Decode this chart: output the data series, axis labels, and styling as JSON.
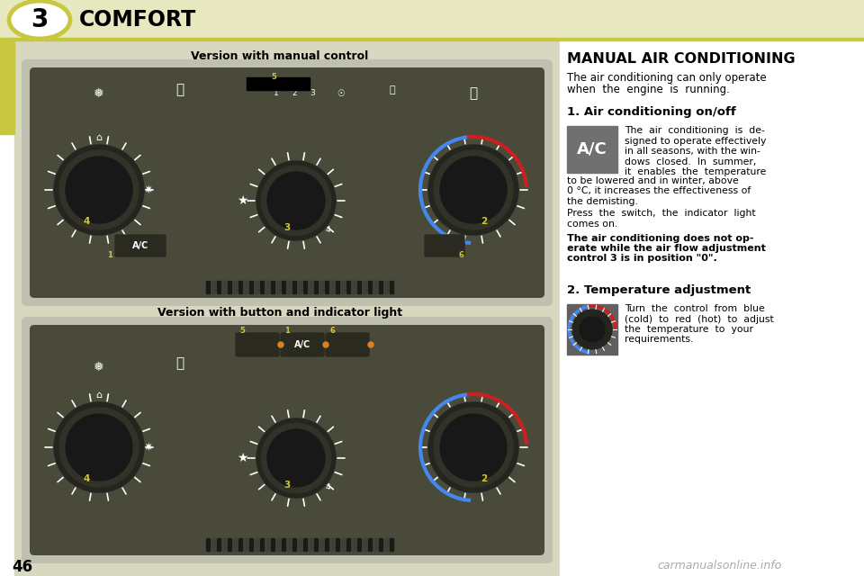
{
  "bg_color": "#ffffff",
  "header_bg": "#e8e8c0",
  "header_text": "COMFORT",
  "chapter_num": "3",
  "page_num": "46",
  "left_caption1": "Version with manual control",
  "left_caption2": "Version with button and indicator light",
  "right_title": "MANUAL AIR CONDITIONING",
  "right_intro_l1": "The air conditioning can only operate",
  "right_intro_l2": "when  the  engine  is  running.",
  "section1_title": "1. Air conditioning on/off",
  "ac_text": [
    "The  air  conditioning  is  de-",
    "signed to operate effectively",
    "in all seasons, with the win-",
    "dows  closed.  In  summer,",
    "it  enables  the  temperature"
  ],
  "ac_text2": [
    "to be lowered and in winter, above",
    "0 °C, it increases the effectiveness of",
    "the demisting."
  ],
  "press_text": [
    "Press  the  switch,  the  indicator  light",
    "comes on."
  ],
  "bold_text": [
    "The air conditioning does not op-",
    "erate while the air flow adjustment",
    "control 3 is in position \"0\"."
  ],
  "section2_title": "2. Temperature adjustment",
  "temp_text": [
    "Turn  the  control  from  blue",
    "(cold)  to  red  (hot)  to  adjust",
    "the  temperature  to  your",
    "requirements."
  ],
  "watermark": "carmanualsonline.info",
  "header_line_color": "#c8c840",
  "tab_color": "#c8c840",
  "left_bg": "#d8d8c0",
  "panel_outer": "#c8c8b8",
  "panel_dark": "#4a4a3a",
  "panel_mid": "#686858",
  "knob_dark": "#252520",
  "knob_darker": "#181818",
  "knob_yellow": "#d4c830",
  "blue_arc": "#4488ee",
  "red_arc": "#cc2020",
  "ac_box_color": "#707070",
  "temp_box_color": "#606060",
  "white_text": "#ffffff",
  "barcode_dark": "#1a1a18",
  "barcode_mid": "#404038"
}
